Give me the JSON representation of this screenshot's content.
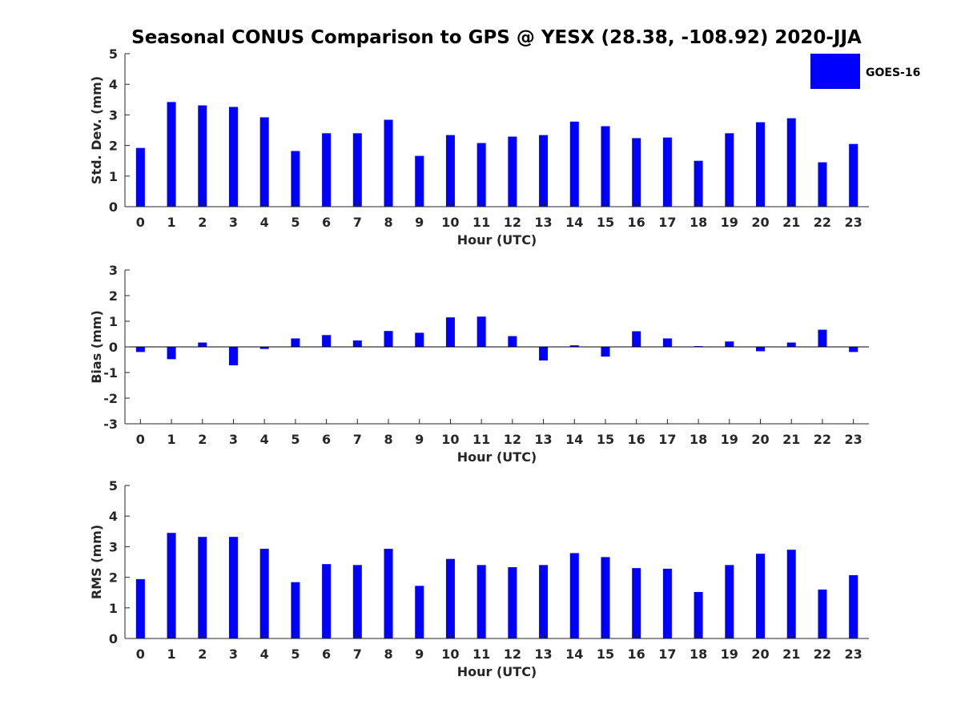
{
  "figure": {
    "title": "Seasonal CONUS Comparison to GPS @ YESX (28.38, -108.92) 2020-JJA",
    "legend_label": "GOES-16",
    "legend_location": "top-right"
  },
  "colors": {
    "bar": "#0000ff",
    "axis": "#262626",
    "title": "#000000"
  },
  "chart_data": [
    {
      "type": "bar",
      "title": "Seasonal CONUS Comparison to GPS @ YESX (28.38, -108.92) 2020-JJA",
      "xlabel": "Hour (UTC)",
      "ylabel": "Std. Dev. (mm)",
      "ylim": [
        0,
        5
      ],
      "yticks": [
        "0",
        "1",
        "2",
        "3",
        "4",
        "5"
      ],
      "categories": [
        "0",
        "1",
        "2",
        "3",
        "4",
        "5",
        "6",
        "7",
        "8",
        "9",
        "10",
        "11",
        "12",
        "13",
        "14",
        "15",
        "16",
        "17",
        "18",
        "19",
        "20",
        "21",
        "22",
        "23"
      ],
      "series": [
        {
          "name": "GOES-16",
          "values": [
            1.92,
            3.42,
            3.31,
            3.26,
            2.92,
            1.82,
            2.4,
            2.4,
            2.84,
            1.66,
            2.34,
            2.08,
            2.29,
            2.34,
            2.78,
            2.63,
            2.24,
            2.26,
            1.5,
            2.4,
            2.76,
            2.89,
            1.45,
            2.05
          ]
        }
      ],
      "legend": [
        "GOES-16"
      ],
      "grid": false
    },
    {
      "type": "bar",
      "title": "",
      "xlabel": "Hour (UTC)",
      "ylabel": "Bias (mm)",
      "ylim": [
        -3,
        3
      ],
      "yticks": [
        "-3",
        "-2",
        "-1",
        "0",
        "1",
        "2",
        "3"
      ],
      "categories": [
        "0",
        "1",
        "2",
        "3",
        "4",
        "5",
        "6",
        "7",
        "8",
        "9",
        "10",
        "11",
        "12",
        "13",
        "14",
        "15",
        "16",
        "17",
        "18",
        "19",
        "20",
        "21",
        "22",
        "23"
      ],
      "series": [
        {
          "name": "GOES-16",
          "values": [
            -0.2,
            -0.48,
            0.17,
            -0.72,
            -0.08,
            0.33,
            0.46,
            0.25,
            0.62,
            0.55,
            1.15,
            1.18,
            0.42,
            -0.53,
            0.06,
            -0.38,
            0.61,
            0.33,
            0.03,
            0.21,
            -0.17,
            0.17,
            0.67,
            -0.2
          ]
        }
      ],
      "grid": false
    },
    {
      "type": "bar",
      "title": "",
      "xlabel": "Hour (UTC)",
      "ylabel": "RMS (mm)",
      "ylim": [
        0,
        5
      ],
      "yticks": [
        "0",
        "1",
        "2",
        "3",
        "4",
        "5"
      ],
      "categories": [
        "0",
        "1",
        "2",
        "3",
        "4",
        "5",
        "6",
        "7",
        "8",
        "9",
        "10",
        "11",
        "12",
        "13",
        "14",
        "15",
        "16",
        "17",
        "18",
        "19",
        "20",
        "21",
        "22",
        "23"
      ],
      "series": [
        {
          "name": "GOES-16",
          "values": [
            1.94,
            3.45,
            3.32,
            3.32,
            2.93,
            1.84,
            2.43,
            2.4,
            2.93,
            1.72,
            2.6,
            2.4,
            2.33,
            2.4,
            2.79,
            2.66,
            2.3,
            2.28,
            1.52,
            2.4,
            2.77,
            2.9,
            1.6,
            2.07
          ]
        }
      ],
      "grid": false
    }
  ]
}
